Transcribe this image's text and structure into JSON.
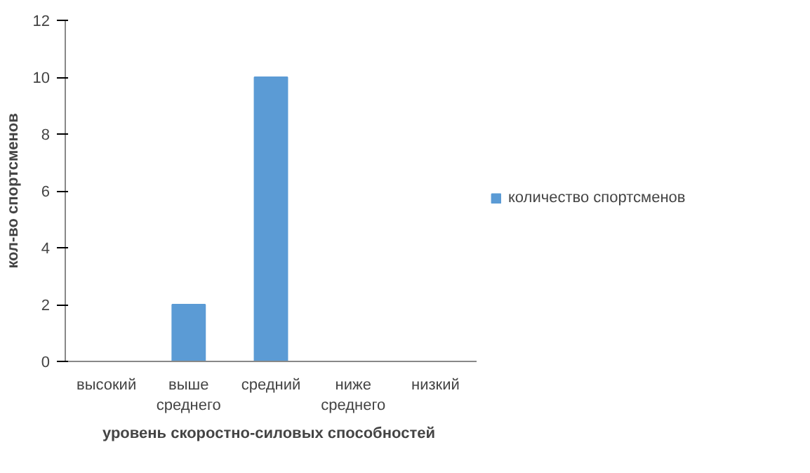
{
  "chart_data": {
    "type": "bar",
    "xlabel": "уровень скоростно-силовых  способностей",
    "ylabel": "кол-во спортсменов",
    "categories": [
      "высокий",
      "выше среднего",
      "средний",
      "ниже среднего",
      "низкий"
    ],
    "series": [
      {
        "name": "количество спортсменов",
        "color": "#5b9bd5",
        "values": [
          0,
          2,
          10,
          0,
          0
        ]
      }
    ],
    "ylim": [
      0,
      12
    ],
    "yticks": [
      0,
      2,
      4,
      6,
      8,
      10,
      12
    ],
    "legend": "right"
  }
}
